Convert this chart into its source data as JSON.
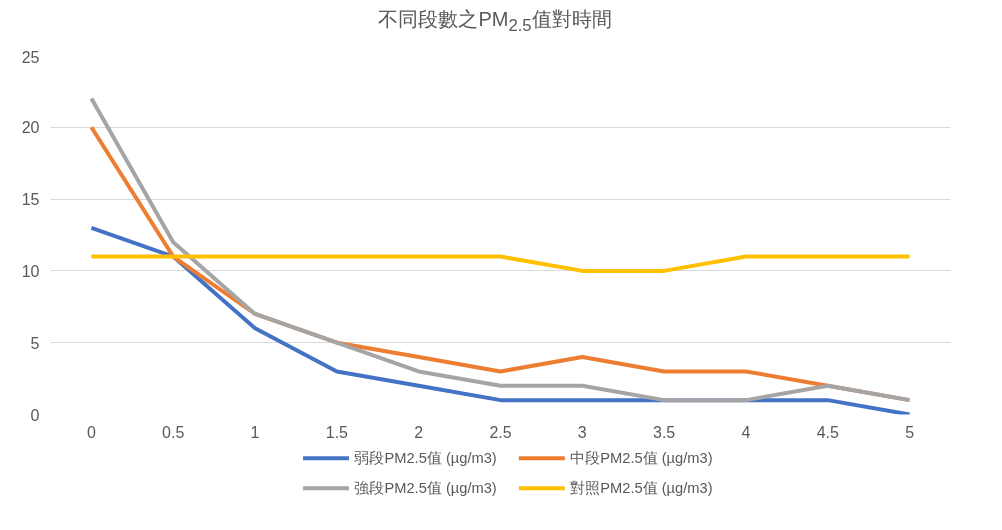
{
  "chart_data": {
    "type": "line",
    "title": "不同段數之PM$_{2.5}$值對時間",
    "categories": [
      "0",
      "0.5",
      "1",
      "1.5",
      "2",
      "2.5",
      "3",
      "3.5",
      "4",
      "4.5",
      "5"
    ],
    "series": [
      {
        "name": "弱段PM2.5值 (µg/m3)",
        "color": "#4472c4",
        "values": [
          13,
          11,
          6,
          3,
          2,
          1,
          1,
          1,
          1,
          1,
          0
        ]
      },
      {
        "name": "中段PM2.5值 (µg/m3)",
        "color": "#ed7d31",
        "values": [
          20,
          11,
          7,
          5,
          4,
          3,
          4,
          3,
          3,
          2,
          1
        ]
      },
      {
        "name": "強段PM2.5值 (µg/m3)",
        "color": "#a5a5a5",
        "values": [
          22,
          12,
          7,
          5,
          3,
          2,
          2,
          1,
          1,
          2,
          1
        ]
      },
      {
        "name": "對照PM2.5值 (µg/m3)",
        "color": "#ffc000",
        "values": [
          11,
          11,
          11,
          11,
          11,
          11,
          10,
          10,
          11,
          11,
          11
        ]
      }
    ],
    "ylim": [
      0,
      25
    ],
    "yticks": [
      0,
      5,
      10,
      15,
      20,
      25
    ],
    "grid": "y",
    "legend": "bottom",
    "marker": "none",
    "line_style": "solid"
  }
}
